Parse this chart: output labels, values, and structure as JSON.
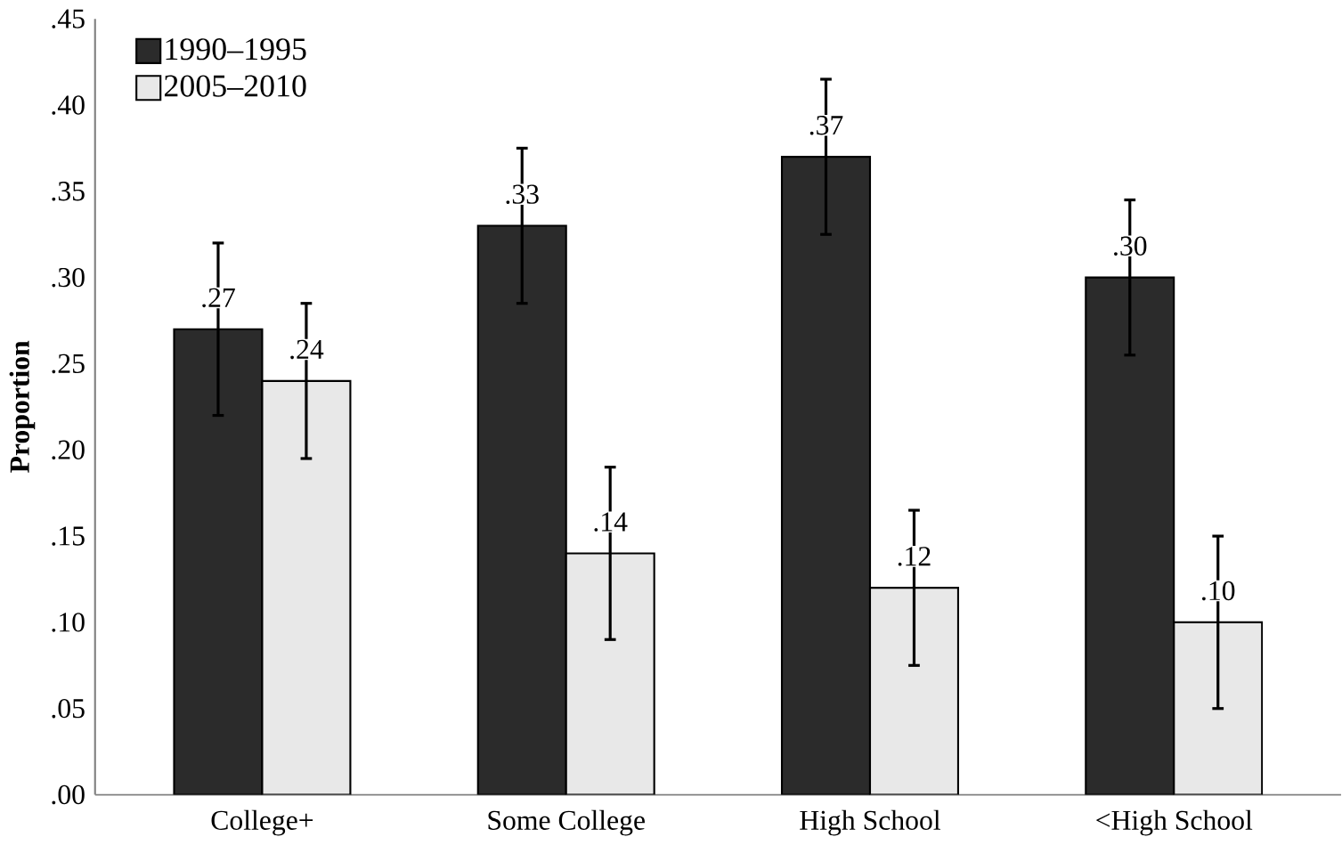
{
  "chart_data": {
    "type": "bar",
    "ylabel": "Proportion",
    "categories": [
      "College+",
      "Some College",
      "High School",
      "<High School"
    ],
    "series": [
      {
        "name": "1990–1995",
        "color": "#2b2b2b",
        "values": [
          0.27,
          0.33,
          0.37,
          0.3
        ],
        "errors": [
          0.05,
          0.045,
          0.045,
          0.045
        ],
        "value_labels": [
          ".27",
          ".33",
          ".37",
          ".30"
        ]
      },
      {
        "name": "2005–2010",
        "color": "#e8e8e8",
        "values": [
          0.24,
          0.14,
          0.12,
          0.1
        ],
        "errors": [
          0.045,
          0.05,
          0.045,
          0.05
        ],
        "value_labels": [
          ".24",
          ".14",
          ".12",
          ".10"
        ]
      }
    ],
    "ylim": [
      0,
      0.45
    ],
    "yticks": [
      {
        "value": 0,
        "label": ".00"
      },
      {
        "value": 0.05,
        "label": ".05"
      },
      {
        "value": 0.1,
        "label": ".10"
      },
      {
        "value": 0.15,
        "label": ".15"
      },
      {
        "value": 0.2,
        "label": ".20"
      },
      {
        "value": 0.25,
        "label": ".25"
      },
      {
        "value": 0.3,
        "label": ".30"
      },
      {
        "value": 0.35,
        "label": ".35"
      },
      {
        "value": 0.4,
        "label": ".40"
      },
      {
        "value": 0.45,
        "label": ".45"
      }
    ],
    "grid": false,
    "legend": "top left"
  }
}
